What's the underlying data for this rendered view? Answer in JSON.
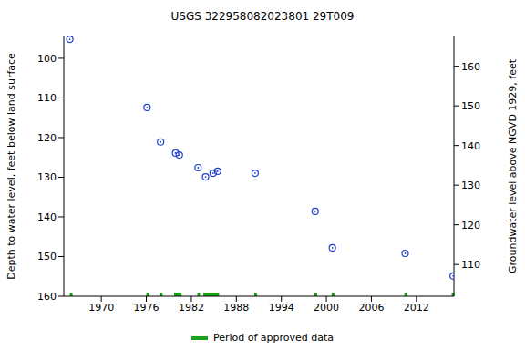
{
  "chart_data": {
    "type": "scatter",
    "title": "USGS 322958082023801 29T009",
    "y_label": "Depth to water level, feet below land surface",
    "y2_label": "Groundwater level above NGVD 1929, feet",
    "x": [
      1965.8,
      1976.1,
      1977.9,
      1979.9,
      1980.4,
      1982.9,
      1983.9,
      1984.9,
      1985.5,
      1990.5,
      1998.5,
      2000.8,
      2010.5,
      2016.9
    ],
    "values": [
      95.2,
      112.4,
      121.1,
      123.9,
      124.4,
      127.6,
      129.9,
      129.0,
      128.5,
      129.0,
      138.6,
      147.8,
      149.2,
      154.9
    ],
    "color": "#1f3fd0",
    "marker": "circle",
    "approved_periods": {
      "name": "Period of approved data",
      "color": "#1aa31a",
      "ranges": [
        [
          1965.8,
          1966.1
        ],
        [
          1976.0,
          1976.3
        ],
        [
          1977.8,
          1978.1
        ],
        [
          1979.7,
          1980.7
        ],
        [
          1982.8,
          1983.1
        ],
        [
          1983.6,
          1985.7
        ],
        [
          1990.4,
          1990.7
        ],
        [
          1998.4,
          1998.7
        ],
        [
          2000.7,
          2001.0
        ],
        [
          2010.4,
          2010.7
        ],
        [
          2016.7,
          2017.0
        ]
      ]
    },
    "xlim": [
      1965,
      2017
    ],
    "xticks": [
      1970,
      1976,
      1982,
      1988,
      1994,
      2000,
      2006,
      2012
    ],
    "ylim": [
      160,
      94.5
    ],
    "yticks": [
      100,
      110,
      120,
      130,
      140,
      150,
      160
    ],
    "y2lim": [
      102,
      167.5
    ],
    "y2ticks": [
      110,
      120,
      130,
      140,
      150,
      160
    ],
    "grid": false
  }
}
